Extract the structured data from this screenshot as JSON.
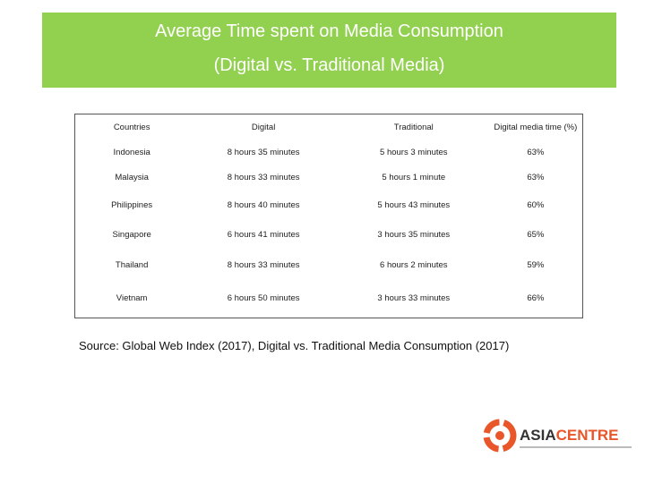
{
  "header": {
    "title_line1": "Average Time spent on Media Consumption",
    "title_line2": "(Digital vs. Traditional Media)"
  },
  "table": {
    "columns": [
      "Countries",
      "Digital",
      "Traditional",
      "Digital media time (%)"
    ],
    "rows": [
      [
        "Indonesia",
        "8 hours 35 minutes",
        "5 hours 3 minutes",
        "63%"
      ],
      [
        "Malaysia",
        "8 hours 33 minutes",
        "5 hours 1 minute",
        "63%"
      ],
      [
        "Philippines",
        "8 hours 40 minutes",
        "5 hours 43 minutes",
        "60%"
      ],
      [
        "Singapore",
        "6 hours 41 minutes",
        "3 hours 35 minutes",
        "65%"
      ],
      [
        "Thailand",
        "8 hours 33 minutes",
        "6 hours 2 minutes",
        "59%"
      ],
      [
        "Vietnam",
        "6 hours 50 minutes",
        "3 hours 33 minutes",
        "66%"
      ]
    ]
  },
  "source": "Source: Global Web Index (2017), Digital vs. Traditional Media Consumption (2017)",
  "logo": {
    "part1": "ASIA",
    "part2": "CENTRE"
  }
}
